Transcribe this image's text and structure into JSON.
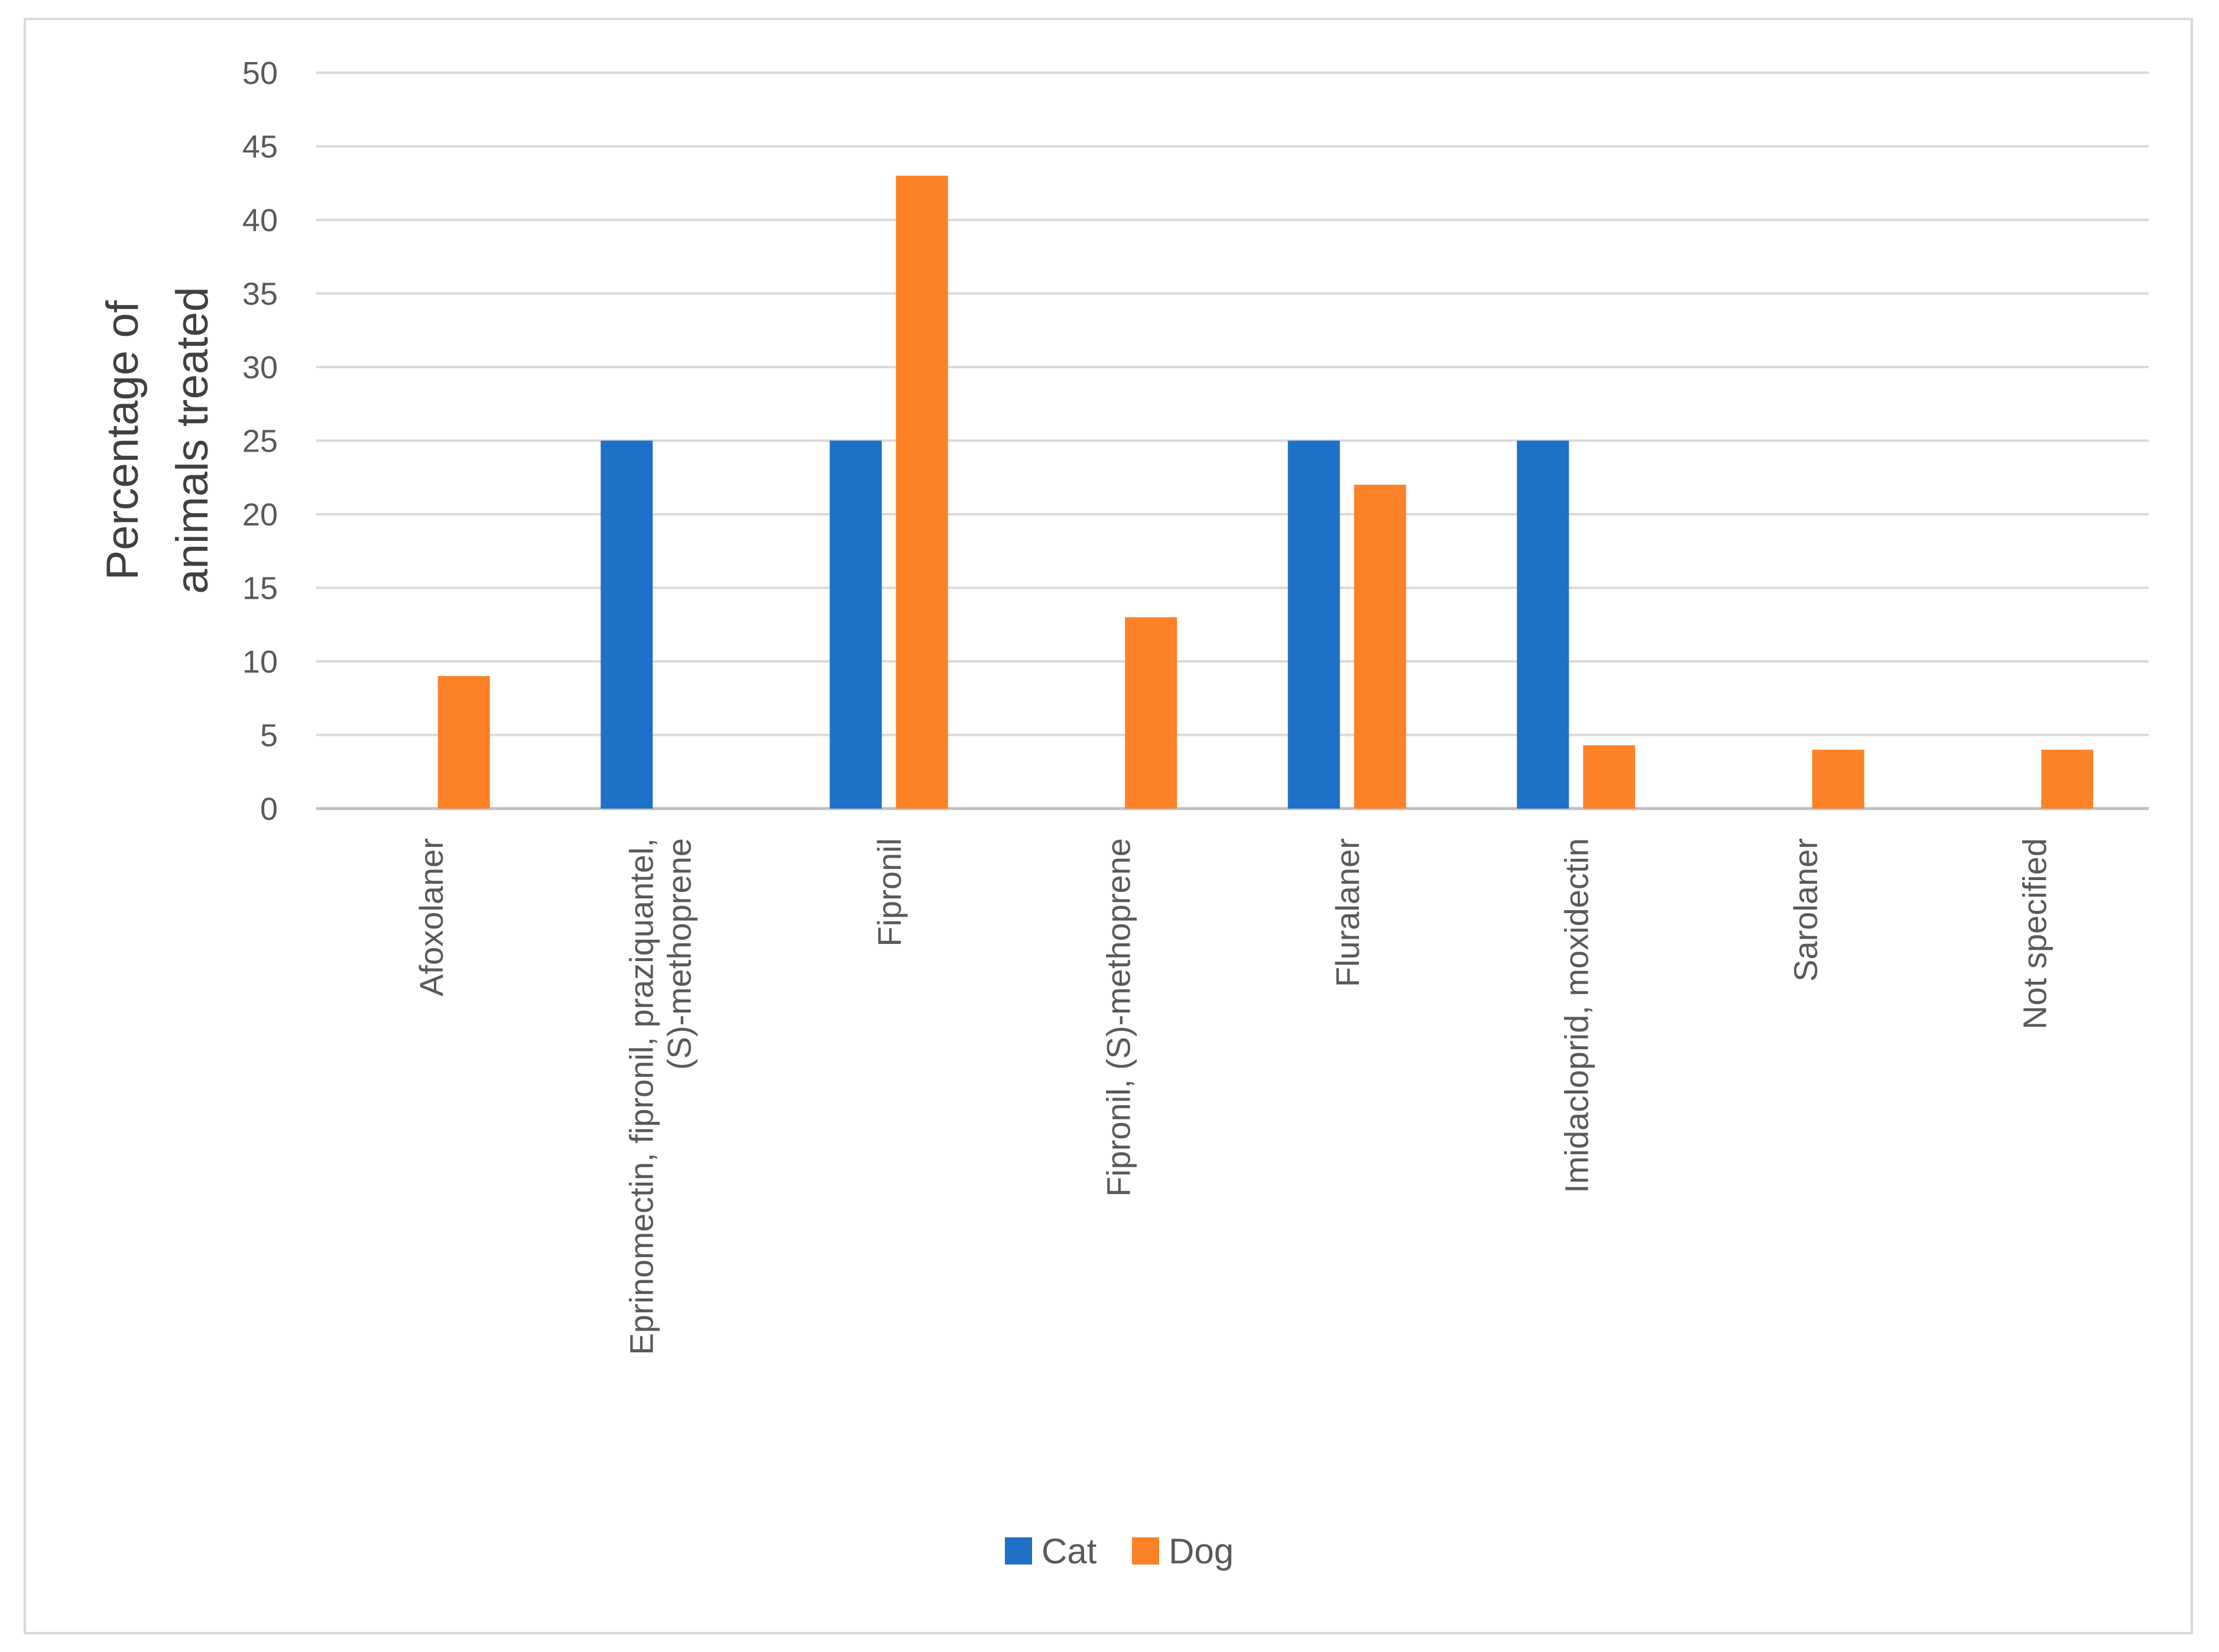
{
  "chart_data": {
    "type": "bar",
    "title": "",
    "ylabel_lines": [
      "Percentage of",
      "animals treated"
    ],
    "xlabel": "",
    "ylim": [
      0,
      50
    ],
    "yticks": [
      0,
      5,
      10,
      15,
      20,
      25,
      30,
      35,
      40,
      45,
      50
    ],
    "grid": true,
    "legend_position": "bottom",
    "categories": [
      [
        "Afoxolaner"
      ],
      [
        "Eprinomectin, fipronil, praziquantel,",
        "(S)-methoprene"
      ],
      [
        "Fipronil"
      ],
      [
        "Fipronil, (S)-methoprene"
      ],
      [
        "Fluralaner"
      ],
      [
        "Imidacloprid, moxidectin"
      ],
      [
        "Sarolaner"
      ],
      [
        "Not specified"
      ]
    ],
    "series": [
      {
        "name": "Cat",
        "color": "#1f70c8",
        "values": [
          0,
          25,
          25,
          0,
          25,
          25,
          0,
          0
        ]
      },
      {
        "name": "Dog",
        "color": "#fd8126",
        "values": [
          9,
          0,
          43,
          13,
          22,
          4.3,
          4,
          4
        ]
      }
    ]
  }
}
